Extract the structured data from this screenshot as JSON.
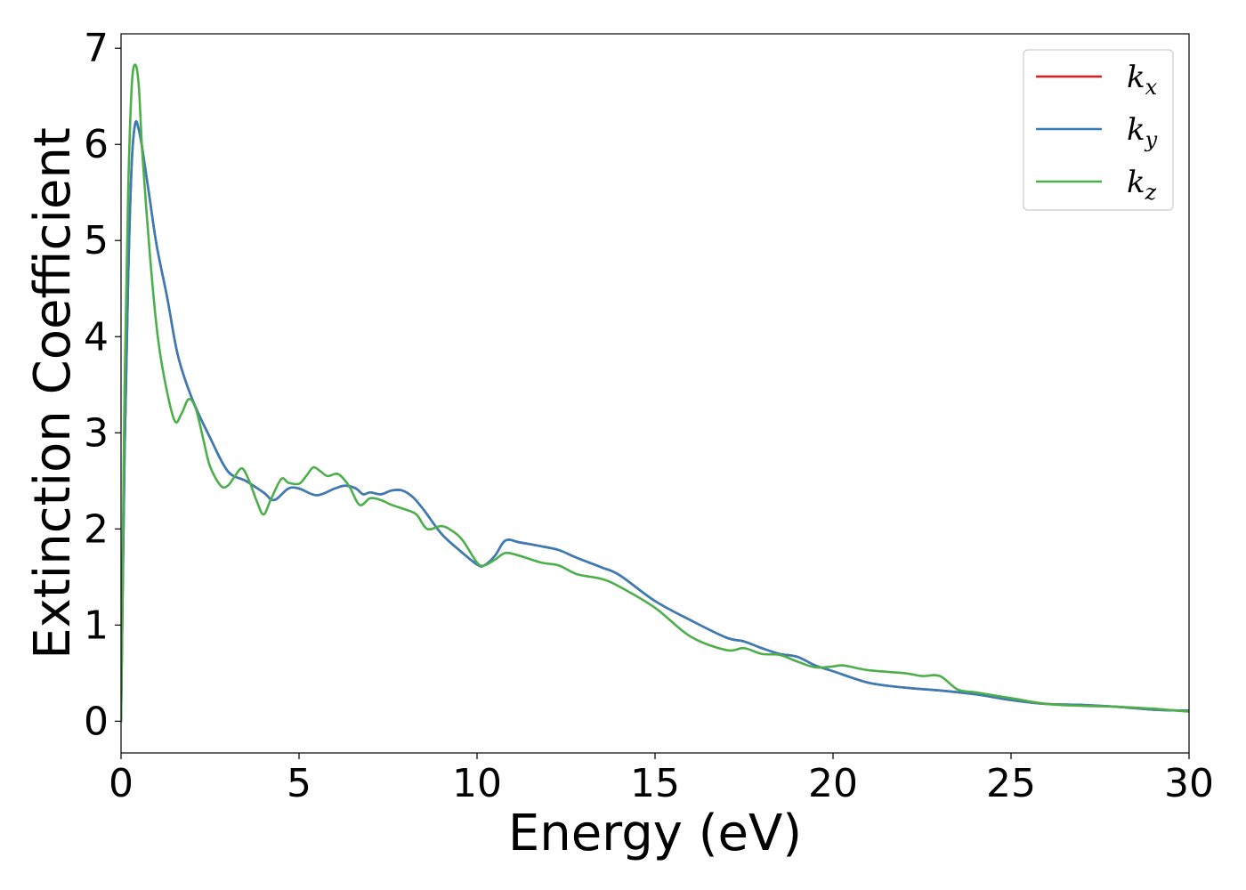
{
  "chart_data": {
    "type": "line",
    "title": "",
    "xlabel": "Energy (eV)",
    "ylabel": "Extinction Coefficient",
    "xlim": [
      0,
      30
    ],
    "ylim": [
      -0.33,
      7.15
    ],
    "xticks": [
      0,
      5,
      10,
      15,
      20,
      25,
      30
    ],
    "yticks": [
      0,
      1,
      2,
      3,
      4,
      5,
      6,
      7
    ],
    "grid": false,
    "legend_position": "top-right",
    "series": [
      {
        "name": "k_x",
        "legend_base": "k",
        "legend_sub": "x",
        "color": "#e41a1c",
        "x": [
          0,
          0.1,
          0.2,
          0.3,
          0.4,
          0.5,
          0.6,
          0.8,
          1.0,
          1.3,
          1.6,
          2.0,
          2.5,
          3.0,
          3.5,
          4.0,
          4.3,
          4.7,
          5.0,
          5.5,
          6.0,
          6.3,
          6.6,
          6.8,
          7.0,
          7.3,
          7.6,
          7.9,
          8.2,
          8.5,
          9.0,
          9.5,
          10.0,
          10.2,
          10.5,
          10.8,
          11.2,
          11.8,
          12.3,
          12.8,
          13.5,
          14.0,
          15.0,
          16.0,
          17.0,
          17.5,
          18.0,
          18.5,
          19.0,
          19.5,
          20.0,
          21.0,
          22.0,
          23.0,
          24.0,
          25.0,
          26.0,
          27.0,
          28.0,
          29.0,
          30.0
        ],
        "values": [
          0,
          2.8,
          4.6,
          5.8,
          6.22,
          6.15,
          5.95,
          5.45,
          4.95,
          4.4,
          3.8,
          3.35,
          2.95,
          2.6,
          2.5,
          2.38,
          2.3,
          2.42,
          2.42,
          2.35,
          2.42,
          2.45,
          2.42,
          2.36,
          2.38,
          2.36,
          2.4,
          2.4,
          2.33,
          2.2,
          1.95,
          1.78,
          1.63,
          1.62,
          1.72,
          1.88,
          1.86,
          1.82,
          1.78,
          1.7,
          1.6,
          1.52,
          1.25,
          1.05,
          0.87,
          0.83,
          0.76,
          0.7,
          0.67,
          0.58,
          0.52,
          0.4,
          0.35,
          0.32,
          0.28,
          0.22,
          0.18,
          0.17,
          0.15,
          0.12,
          0.11
        ]
      },
      {
        "name": "k_y",
        "legend_base": "k",
        "legend_sub": "y",
        "color": "#377eb8",
        "x": [
          0,
          0.1,
          0.2,
          0.3,
          0.4,
          0.5,
          0.6,
          0.8,
          1.0,
          1.3,
          1.6,
          2.0,
          2.5,
          3.0,
          3.5,
          4.0,
          4.3,
          4.7,
          5.0,
          5.5,
          6.0,
          6.3,
          6.6,
          6.8,
          7.0,
          7.3,
          7.6,
          7.9,
          8.2,
          8.5,
          9.0,
          9.5,
          10.0,
          10.2,
          10.5,
          10.8,
          11.2,
          11.8,
          12.3,
          12.8,
          13.5,
          14.0,
          15.0,
          16.0,
          17.0,
          17.5,
          18.0,
          18.5,
          19.0,
          19.5,
          20.0,
          21.0,
          22.0,
          23.0,
          24.0,
          25.0,
          26.0,
          27.0,
          28.0,
          29.0,
          30.0
        ],
        "values": [
          0,
          2.8,
          4.6,
          5.8,
          6.22,
          6.15,
          5.95,
          5.45,
          4.95,
          4.4,
          3.8,
          3.35,
          2.95,
          2.6,
          2.5,
          2.38,
          2.3,
          2.42,
          2.42,
          2.35,
          2.42,
          2.45,
          2.42,
          2.36,
          2.38,
          2.36,
          2.4,
          2.4,
          2.33,
          2.2,
          1.95,
          1.78,
          1.63,
          1.62,
          1.72,
          1.88,
          1.86,
          1.82,
          1.78,
          1.7,
          1.6,
          1.52,
          1.25,
          1.05,
          0.87,
          0.83,
          0.76,
          0.7,
          0.67,
          0.58,
          0.52,
          0.4,
          0.35,
          0.32,
          0.28,
          0.22,
          0.18,
          0.17,
          0.15,
          0.12,
          0.11
        ]
      },
      {
        "name": "k_z",
        "legend_base": "k",
        "legend_sub": "z",
        "color": "#4daf4a",
        "x": [
          0,
          0.1,
          0.2,
          0.3,
          0.4,
          0.5,
          0.6,
          0.8,
          1.0,
          1.2,
          1.5,
          1.7,
          1.9,
          2.1,
          2.3,
          2.5,
          2.8,
          3.0,
          3.2,
          3.4,
          3.6,
          3.8,
          4.0,
          4.2,
          4.5,
          4.7,
          5.0,
          5.2,
          5.4,
          5.6,
          5.8,
          6.1,
          6.4,
          6.7,
          7.0,
          7.3,
          7.6,
          8.0,
          8.3,
          8.6,
          9.0,
          9.3,
          9.6,
          10.0,
          10.2,
          10.5,
          10.8,
          11.2,
          11.8,
          12.3,
          12.8,
          13.5,
          14.0,
          15.0,
          16.0,
          17.0,
          17.5,
          18.0,
          18.5,
          19.0,
          19.5,
          20.0,
          20.3,
          21.0,
          22.0,
          22.5,
          23.0,
          23.5,
          24.0,
          25.0,
          26.0,
          27.0,
          28.0,
          29.0,
          30.0
        ],
        "values": [
          0,
          3.5,
          5.5,
          6.6,
          6.83,
          6.6,
          5.9,
          4.9,
          4.1,
          3.6,
          3.13,
          3.2,
          3.35,
          3.25,
          2.95,
          2.65,
          2.45,
          2.45,
          2.55,
          2.63,
          2.5,
          2.3,
          2.15,
          2.3,
          2.52,
          2.48,
          2.47,
          2.55,
          2.64,
          2.6,
          2.55,
          2.57,
          2.45,
          2.25,
          2.32,
          2.3,
          2.25,
          2.2,
          2.15,
          2.0,
          2.03,
          1.98,
          1.88,
          1.65,
          1.62,
          1.68,
          1.75,
          1.72,
          1.65,
          1.62,
          1.53,
          1.48,
          1.4,
          1.18,
          0.88,
          0.74,
          0.76,
          0.7,
          0.69,
          0.62,
          0.56,
          0.57,
          0.58,
          0.53,
          0.5,
          0.47,
          0.47,
          0.33,
          0.3,
          0.24,
          0.18,
          0.16,
          0.15,
          0.13,
          0.1
        ]
      }
    ]
  }
}
